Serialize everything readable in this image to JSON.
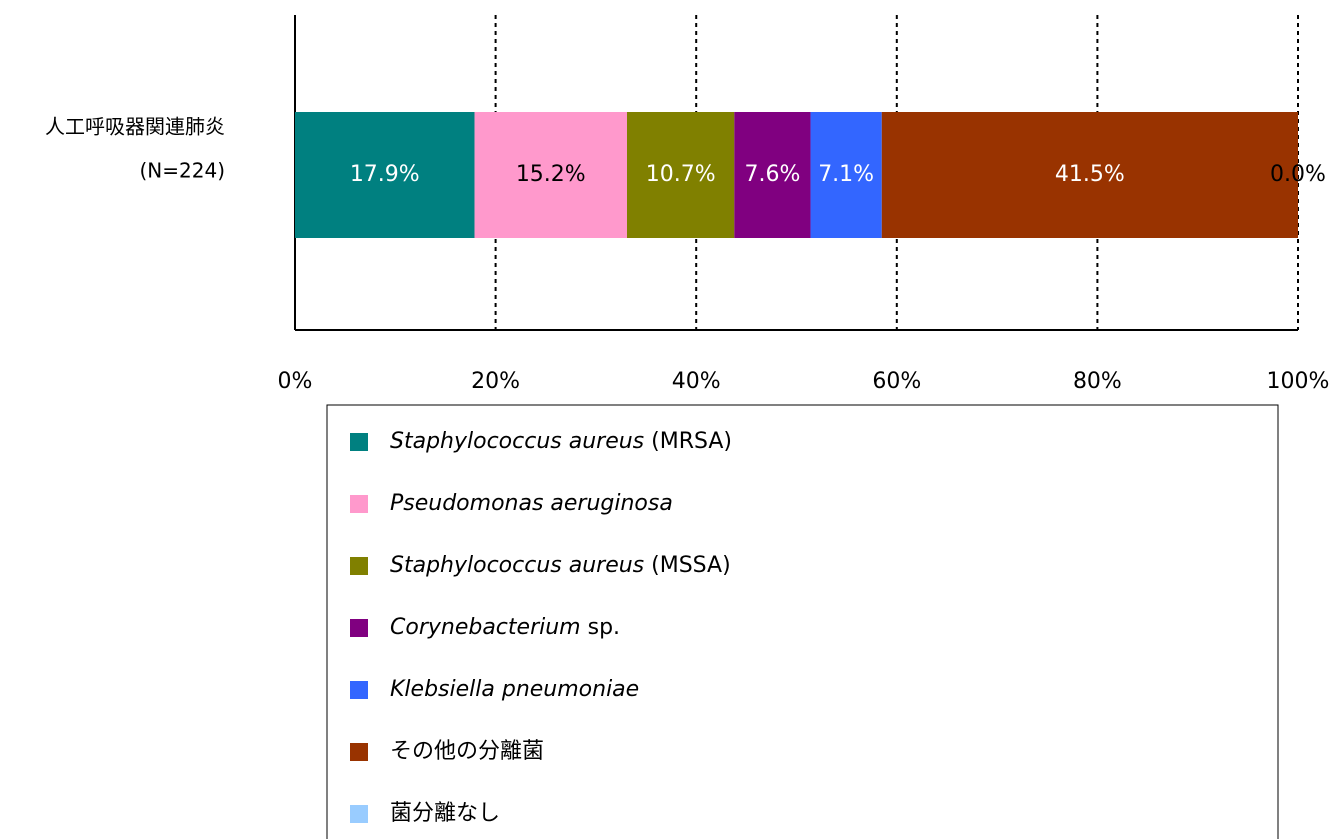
{
  "chart_data": {
    "type": "stacked_barh",
    "categories": [
      [
        "人工呼吸器関連肺炎",
        "(N=224)"
      ]
    ],
    "series": [
      {
        "name": "Staphylococcus aureus (MRSA)",
        "color": "#008080",
        "values": [
          17.9
        ],
        "value_labels": [
          "17.9%"
        ]
      },
      {
        "name": "Pseudomonas aeruginosa",
        "color": "#ff99cc",
        "values": [
          15.2
        ],
        "value_labels": [
          "15.2%"
        ]
      },
      {
        "name": "Staphylococcus aureus (MSSA)",
        "color": "#808000",
        "values": [
          10.7
        ],
        "value_labels": [
          "10.7%"
        ]
      },
      {
        "name": "Corynebacterium sp.",
        "color": "#800080",
        "values": [
          7.6
        ],
        "value_labels": [
          "7.6%"
        ]
      },
      {
        "name": "Klebsiella pneumoniae",
        "color": "#3366ff",
        "values": [
          7.1
        ],
        "value_labels": [
          "7.1%"
        ]
      },
      {
        "name": "その他の分離菌",
        "color": "#993300",
        "values": [
          41.5
        ],
        "value_labels": [
          "41.5%"
        ]
      },
      {
        "name": "菌分離なし",
        "color": "#99ccff",
        "values": [
          0.0
        ],
        "value_labels": [
          "0.0%"
        ]
      }
    ],
    "xlim": [
      0,
      100
    ],
    "xticks": [
      {
        "value": 0,
        "label": "0%"
      },
      {
        "value": 20,
        "label": "20%"
      },
      {
        "value": 40,
        "label": "40%"
      },
      {
        "value": 60,
        "label": "60%"
      },
      {
        "value": 80,
        "label": "80%"
      },
      {
        "value": 100,
        "label": "100%"
      }
    ],
    "grid": true,
    "legend": "bottom"
  }
}
